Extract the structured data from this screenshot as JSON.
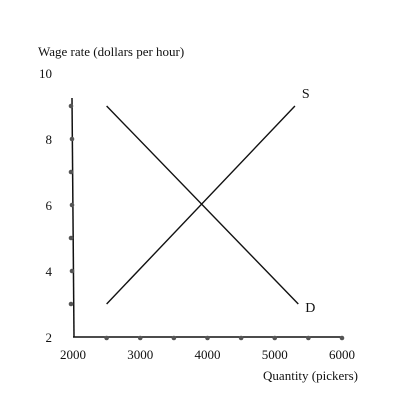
{
  "chart_data": {
    "type": "line",
    "title": "",
    "ylabel": "Wage rate (dollars per hour)",
    "xlabel": "Quantity (pickers)",
    "xlim": [
      2000,
      6000
    ],
    "ylim": [
      2,
      10
    ],
    "x_ticks": [
      2000,
      3000,
      4000,
      5000,
      6000
    ],
    "y_ticks": [
      2,
      4,
      6,
      8,
      10
    ],
    "x_tick_labels": [
      "2000",
      "3000",
      "4000",
      "5000",
      "6000"
    ],
    "y_tick_labels": [
      "2",
      "4",
      "6",
      "8",
      "10"
    ],
    "grid": false,
    "legend": "none",
    "series": [
      {
        "name": "S",
        "x": [
          2500,
          5300
        ],
        "y": [
          3,
          9
        ]
      },
      {
        "name": "D",
        "x": [
          2500,
          5350
        ],
        "y": [
          9,
          3
        ]
      }
    ],
    "x_axis_dots": [
      2500,
      3000,
      3500,
      4000,
      4500,
      5000,
      5500,
      6000
    ],
    "y_axis_dots": [
      3,
      4,
      5,
      6,
      7,
      8,
      9
    ],
    "line_color": "#111111",
    "dot_color": "#555555"
  }
}
